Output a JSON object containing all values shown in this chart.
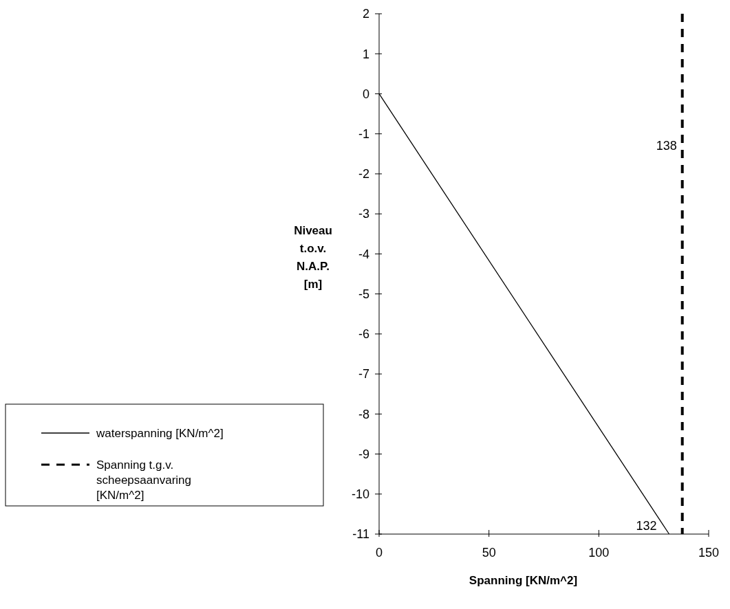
{
  "chart_data": {
    "type": "line",
    "xlabel": "Spanning [KN/m^2]",
    "ylabel": "Niveau t.o.v. N.A.P. [m]",
    "xlim": [
      0,
      150
    ],
    "xticks": [
      0,
      50,
      100,
      150
    ],
    "ylim": [
      -11,
      2
    ],
    "yticks": [
      2,
      1,
      0,
      -1,
      -2,
      -3,
      -4,
      -5,
      -6,
      -7,
      -8,
      -9,
      -10,
      -11
    ],
    "series": [
      {
        "name": "waterspanning [KN/m^2]",
        "color": "#000000",
        "x": [
          0,
          132
        ],
        "values": [
          0,
          -11
        ],
        "line_style": "solid"
      },
      {
        "name": "Spanning t.g.v. scheepsaanvaring [KN/m^2]",
        "color": "#000000",
        "x": [
          138,
          138
        ],
        "values": [
          2,
          -11
        ],
        "line_style": "dashed"
      }
    ],
    "annotations": [
      {
        "text": "138",
        "x": 138,
        "y": -1.3
      },
      {
        "text": "132",
        "x": 132,
        "y": -11
      }
    ],
    "legend": "bottom left",
    "grid": false,
    "marker": "none"
  }
}
